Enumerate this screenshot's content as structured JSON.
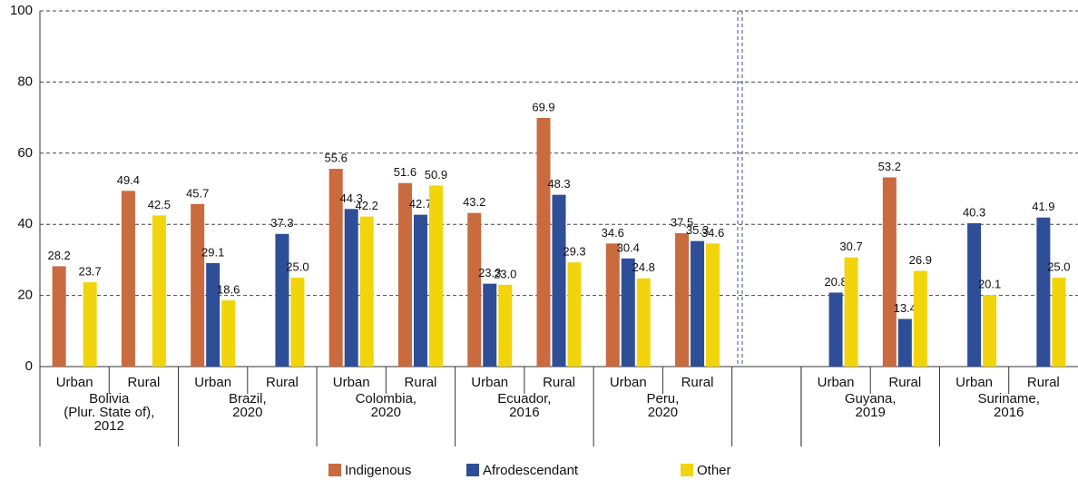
{
  "chart_data": {
    "type": "bar",
    "categories": [
      "Urban",
      "Rural",
      "Urban",
      "Rural",
      "Urban",
      "Rural",
      "Urban",
      "Rural",
      "Urban",
      "Rural",
      "Urban",
      "Rural",
      "Urban",
      "Rural"
    ],
    "groups": [
      {
        "label": [
          "Bolivia",
          "(Plur. State of),",
          "2012"
        ]
      },
      {
        "label": [
          "Brazil,",
          "2020"
        ]
      },
      {
        "label": [
          "Colombia,",
          "2020"
        ]
      },
      {
        "label": [
          "Ecuador,",
          "2016"
        ]
      },
      {
        "label": [
          "Peru,",
          "2020"
        ]
      },
      {
        "label": [
          "Guyana,",
          "2019"
        ]
      },
      {
        "label": [
          "Suriname,",
          "2016"
        ]
      }
    ],
    "series": [
      {
        "name": "Indigenous",
        "color": "#c96a3f",
        "values": [
          28.2,
          49.4,
          45.7,
          null,
          55.6,
          51.6,
          43.2,
          69.9,
          34.6,
          37.5,
          null,
          53.2,
          null,
          null
        ],
        "value_labels": [
          "28.2",
          "49.4",
          "45.7",
          null,
          "55.6",
          "51.6",
          "43.2",
          "69.9",
          "34.6",
          "37.5",
          null,
          "53.2",
          null,
          null
        ]
      },
      {
        "name": "Afrodescendant",
        "color": "#2f4e98",
        "values": [
          null,
          null,
          29.1,
          37.3,
          44.3,
          42.7,
          23.3,
          48.3,
          30.4,
          35.3,
          20.8,
          13.4,
          40.3,
          41.9
        ],
        "value_labels": [
          null,
          null,
          "29.1",
          "37.3",
          "44.3",
          "42.7",
          "23.3",
          "48.3",
          "30.4",
          "35.3",
          "20.8",
          "13.4",
          "40.3",
          "41.9"
        ]
      },
      {
        "name": "Other",
        "color": "#f2d40c",
        "values": [
          23.7,
          42.5,
          18.6,
          25.0,
          42.2,
          50.9,
          23.0,
          29.3,
          24.8,
          34.6,
          30.7,
          26.9,
          20.1,
          25.0
        ],
        "value_labels": [
          "23.7",
          "42.5",
          "18.6",
          "25.0",
          "42.2",
          "50.9",
          "23.0",
          "29.3",
          "24.8",
          "34.6",
          "30.7",
          "26.9",
          "20.1",
          "25.0"
        ]
      }
    ],
    "ylim": [
      0,
      100
    ],
    "yticks": [
      0,
      20,
      40,
      60,
      80,
      100
    ],
    "grid": true,
    "legend": "bottom"
  }
}
